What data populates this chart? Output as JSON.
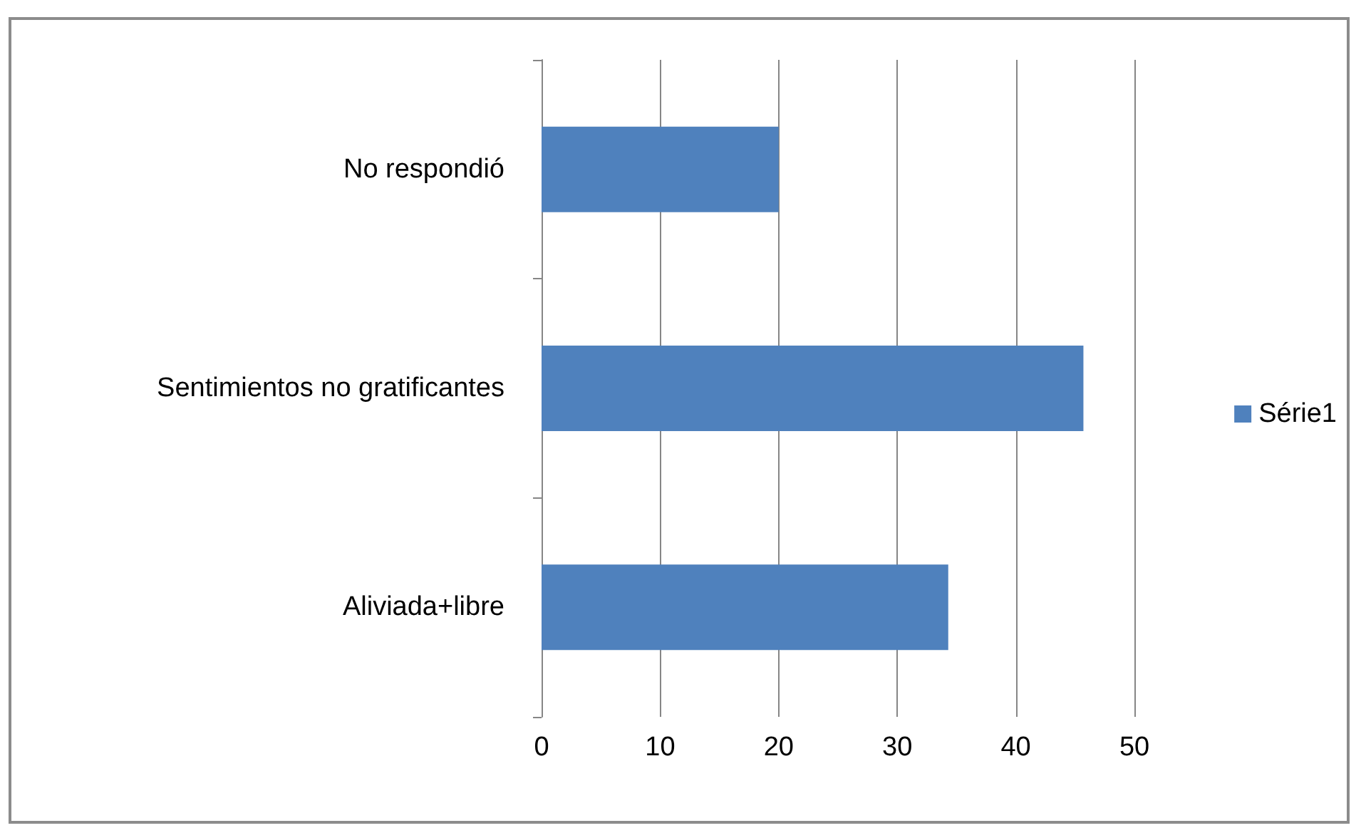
{
  "chart_data": {
    "type": "bar",
    "orientation": "horizontal",
    "categories": [
      "No respondió",
      "Sentimientos no gratificantes",
      "Aliviada+libre"
    ],
    "series": [
      {
        "name": "Série1",
        "color": "#4f81bd",
        "values": [
          20,
          45.7,
          34.3
        ]
      }
    ],
    "xlim": [
      0,
      50
    ],
    "xticks": [
      0,
      10,
      20,
      30,
      40,
      50
    ],
    "grid": "x",
    "legend": "right"
  }
}
